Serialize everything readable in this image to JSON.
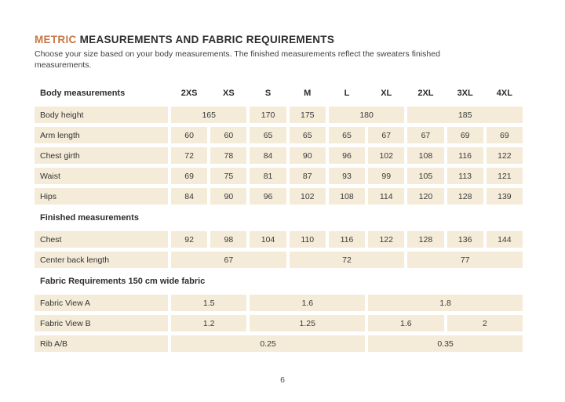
{
  "colors": {
    "accent": "#c97647",
    "cell_background": "#f4ecd8",
    "text": "#2d2d2d"
  },
  "page": {
    "title_accent": "METRIC",
    "title_rest": " MEASUREMENTS AND FABRIC REQUIREMENTS",
    "subtitle_line1": "Choose your size based on your body measurements. The finished measurements reflect the sweaters finished",
    "subtitle_line2": "measurements.",
    "page_number": "6"
  },
  "table": {
    "header": {
      "label": "Body measurements",
      "sizes": [
        "2XS",
        "XS",
        "S",
        "M",
        "L",
        "XL",
        "2XL",
        "3XL",
        "4XL"
      ]
    },
    "sections": [
      {
        "heading": "",
        "rows": [
          {
            "label": "Body height",
            "cells": [
              {
                "v": "165",
                "span": 2
              },
              {
                "v": "170",
                "span": 1
              },
              {
                "v": "175",
                "span": 1
              },
              {
                "v": "180",
                "span": 2
              },
              {
                "v": "185",
                "span": 3
              }
            ]
          },
          {
            "label": "Arm length",
            "cells": [
              {
                "v": "60",
                "span": 1
              },
              {
                "v": "60",
                "span": 1
              },
              {
                "v": "65",
                "span": 1
              },
              {
                "v": "65",
                "span": 1
              },
              {
                "v": "65",
                "span": 1
              },
              {
                "v": "67",
                "span": 1
              },
              {
                "v": "67",
                "span": 1
              },
              {
                "v": "69",
                "span": 1
              },
              {
                "v": "69",
                "span": 1
              }
            ]
          },
          {
            "label": "Chest girth",
            "cells": [
              {
                "v": "72",
                "span": 1
              },
              {
                "v": "78",
                "span": 1
              },
              {
                "v": "84",
                "span": 1
              },
              {
                "v": "90",
                "span": 1
              },
              {
                "v": "96",
                "span": 1
              },
              {
                "v": "102",
                "span": 1
              },
              {
                "v": "108",
                "span": 1
              },
              {
                "v": "116",
                "span": 1
              },
              {
                "v": "122",
                "span": 1
              }
            ]
          },
          {
            "label": "Waist",
            "cells": [
              {
                "v": "69",
                "span": 1
              },
              {
                "v": "75",
                "span": 1
              },
              {
                "v": "81",
                "span": 1
              },
              {
                "v": "87",
                "span": 1
              },
              {
                "v": "93",
                "span": 1
              },
              {
                "v": "99",
                "span": 1
              },
              {
                "v": "105",
                "span": 1
              },
              {
                "v": "113",
                "span": 1
              },
              {
                "v": "121",
                "span": 1
              }
            ]
          },
          {
            "label": "Hips",
            "cells": [
              {
                "v": "84",
                "span": 1
              },
              {
                "v": "90",
                "span": 1
              },
              {
                "v": "96",
                "span": 1
              },
              {
                "v": "102",
                "span": 1
              },
              {
                "v": "108",
                "span": 1
              },
              {
                "v": "114",
                "span": 1
              },
              {
                "v": "120",
                "span": 1
              },
              {
                "v": "128",
                "span": 1
              },
              {
                "v": "139",
                "span": 1
              }
            ]
          }
        ]
      },
      {
        "heading": "Finished measurements",
        "rows": [
          {
            "label": "Chest",
            "cells": [
              {
                "v": "92",
                "span": 1
              },
              {
                "v": "98",
                "span": 1
              },
              {
                "v": "104",
                "span": 1
              },
              {
                "v": "110",
                "span": 1
              },
              {
                "v": "116",
                "span": 1
              },
              {
                "v": "122",
                "span": 1
              },
              {
                "v": "128",
                "span": 1
              },
              {
                "v": "136",
                "span": 1
              },
              {
                "v": "144",
                "span": 1
              }
            ]
          },
          {
            "label": "Center back length",
            "cells": [
              {
                "v": "67",
                "span": 3
              },
              {
                "v": "72",
                "span": 3
              },
              {
                "v": "77",
                "span": 3
              }
            ]
          }
        ]
      },
      {
        "heading": "Fabric Requirements 150 cm wide fabric",
        "rows": [
          {
            "label": "Fabric View A",
            "cells": [
              {
                "v": "1.5",
                "span": 2
              },
              {
                "v": "1.6",
                "span": 3
              },
              {
                "v": "1.8",
                "span": 4
              }
            ]
          },
          {
            "label": "Fabric View B",
            "cells": [
              {
                "v": "1.2",
                "span": 2
              },
              {
                "v": "1.25",
                "span": 3
              },
              {
                "v": "1.6",
                "span": 2
              },
              {
                "v": "2",
                "span": 2
              }
            ]
          },
          {
            "label": "Rib A/B",
            "cells": [
              {
                "v": "0.25",
                "span": 5
              },
              {
                "v": "0.35",
                "span": 4
              }
            ]
          }
        ]
      }
    ]
  }
}
